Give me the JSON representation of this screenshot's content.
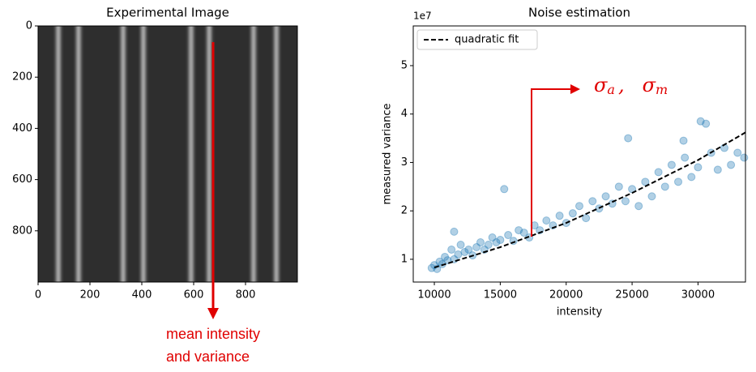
{
  "chart_data": [
    {
      "type": "image",
      "title": "Experimental Image",
      "xlim": [
        0,
        1000
      ],
      "ylim": [
        1000,
        0
      ],
      "xticks": [
        0,
        200,
        400,
        600,
        800
      ],
      "yticks": [
        0,
        200,
        400,
        600,
        800
      ],
      "background": "#2e2e2e",
      "color": "#c8c8c8",
      "stripes": [
        78,
        156,
        328,
        406,
        590,
        660,
        831,
        919
      ],
      "annotation": [
        "mean intensity",
        "and variance"
      ],
      "annotation_color": "#e00000"
    },
    {
      "type": "scatter",
      "title": "Noise estimation",
      "xlabel": "intensity",
      "ylabel": "measured variance",
      "offset_label": "1e7",
      "xlim": [
        8400,
        33600
      ],
      "ylim": [
        0.53,
        5.82
      ],
      "xticks": [
        10000,
        15000,
        20000,
        25000,
        30000
      ],
      "yticks": [
        1,
        2,
        3,
        4,
        5
      ],
      "legend": "upper left",
      "points": {
        "color": "#1f77b4",
        "x": [
          9800,
          10000,
          10200,
          10400,
          10600,
          10800,
          11000,
          11300,
          11500,
          11800,
          12000,
          12300,
          12600,
          12900,
          13200,
          13500,
          13800,
          14100,
          14400,
          14700,
          15000,
          15300,
          15600,
          16000,
          16400,
          16800,
          17200,
          17600,
          18000,
          18500,
          19000,
          19500,
          20000,
          20500,
          21000,
          21500,
          22000,
          22500,
          23000,
          23500,
          24000,
          24500,
          24700,
          25000,
          25500,
          26000,
          26500,
          27000,
          27500,
          28000,
          28500,
          28900,
          29000,
          29500,
          30000,
          30200,
          30600,
          31000,
          31500,
          32000,
          32500,
          33000,
          33500,
          11500
        ],
        "values": [
          0.82,
          0.88,
          0.8,
          0.95,
          0.9,
          1.05,
          0.98,
          1.2,
          1.0,
          1.1,
          1.3,
          1.15,
          1.2,
          1.08,
          1.25,
          1.35,
          1.2,
          1.3,
          1.45,
          1.35,
          1.4,
          2.45,
          1.5,
          1.38,
          1.6,
          1.55,
          1.45,
          1.7,
          1.6,
          1.8,
          1.7,
          1.9,
          1.75,
          1.95,
          2.1,
          1.85,
          2.2,
          2.05,
          2.3,
          2.15,
          2.5,
          2.2,
          3.5,
          2.45,
          2.1,
          2.6,
          2.3,
          2.8,
          2.5,
          2.95,
          2.6,
          3.45,
          3.1,
          2.7,
          2.9,
          3.85,
          3.8,
          3.2,
          2.85,
          3.3,
          2.95,
          3.2,
          3.1,
          1.57
        ]
      },
      "fit": {
        "name": "quadratic fit",
        "color": "#000000",
        "x": [
          10000,
          15000,
          20000,
          25000,
          30000,
          33600
        ],
        "values": [
          0.83,
          1.25,
          1.75,
          2.37,
          3.05,
          3.62
        ]
      },
      "annotation": [
        "σ",
        "a",
        ",",
        "σ",
        "m"
      ],
      "annotation_color": "#e00000"
    }
  ]
}
